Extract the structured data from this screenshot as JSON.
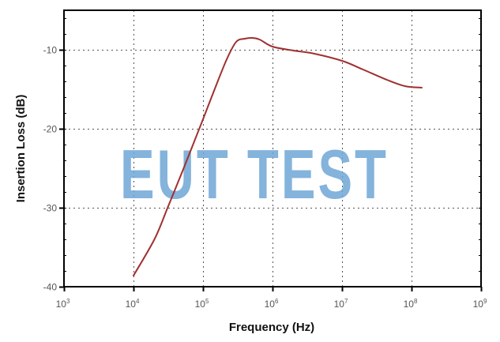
{
  "chart_data": {
    "type": "line",
    "title": "",
    "xlabel": "Frequency (Hz)",
    "ylabel": "Insertion Loss (dB)",
    "xscale": "log",
    "xlim": [
      1000,
      1000000000
    ],
    "ylim": [
      -40,
      -5
    ],
    "x_ticks": [
      {
        "base": "10",
        "exp": "3",
        "value": 1000
      },
      {
        "base": "10",
        "exp": "4",
        "value": 10000
      },
      {
        "base": "10",
        "exp": "5",
        "value": 100000
      },
      {
        "base": "10",
        "exp": "6",
        "value": 1000000
      },
      {
        "base": "10",
        "exp": "7",
        "value": 10000000
      },
      {
        "base": "10",
        "exp": "8",
        "value": 100000000
      },
      {
        "base": "10",
        "exp": "9",
        "value": 1000000000
      }
    ],
    "y_ticks": [
      {
        "label": "-10",
        "value": -10
      },
      {
        "label": "-20",
        "value": -20
      },
      {
        "label": "-30",
        "value": -30
      },
      {
        "label": "-40",
        "value": -40
      }
    ],
    "grid": "dotted",
    "legend": null,
    "series": [
      {
        "name": "Insertion Loss",
        "color": "#a03030",
        "x": [
          10000,
          20000,
          31000,
          50000,
          100000,
          150000,
          220000,
          300000,
          400000,
          500000,
          650000,
          1000000,
          2000000,
          4000000,
          10000000,
          20000000,
          44000000,
          80000000,
          140000000
        ],
        "y": [
          -38.6,
          -34.0,
          -30.0,
          -25.5,
          -18.8,
          -14.8,
          -11.2,
          -9.0,
          -8.6,
          -8.5,
          -8.7,
          -9.6,
          -10.1,
          -10.5,
          -11.4,
          -12.5,
          -13.8,
          -14.6,
          -14.8
        ]
      }
    ],
    "watermark": "EUT TEST"
  },
  "axes": {
    "x_title": "Frequency (Hz)",
    "y_title": "Insertion Loss (dB)"
  },
  "colors": {
    "line": "#a03030",
    "watermark": "#6fa6d6",
    "frame": "#000000",
    "grid": "#555555"
  }
}
